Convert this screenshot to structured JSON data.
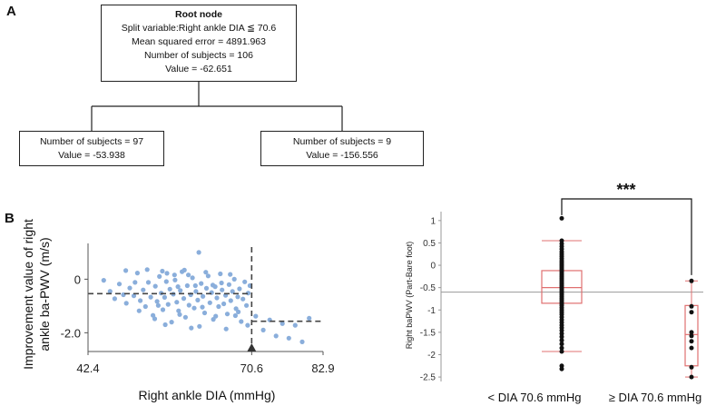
{
  "panels": {
    "a": "A",
    "b": "B"
  },
  "tree": {
    "root": {
      "title": "Root node",
      "lines": [
        "Split variable:Right ankle DIA ≦ 70.6",
        "Mean squared error = 4891.963",
        "Number of subjects = 106",
        "Value = -62.651"
      ]
    },
    "left": {
      "lines": [
        "Number of subjects = 97",
        "Value = -53.938"
      ]
    },
    "right": {
      "lines": [
        "Number of subjects = 9",
        "Value = -156.556"
      ]
    }
  },
  "chart_data": [
    {
      "type": "scatter",
      "xlabel": "Right ankle DIA (mmHg)",
      "ylabel_lines": [
        "Improvement value of right",
        "ankle ba-PWV (m/s)"
      ],
      "xlim": [
        42.4,
        82.9
      ],
      "ylim": [
        -2.7,
        1.2
      ],
      "xticks": [
        {
          "value": 42.4,
          "label": "42.4"
        },
        {
          "value": 70.6,
          "label": "70.6"
        },
        {
          "value": 82.9,
          "label": "82.9"
        }
      ],
      "yticks": [
        {
          "value": 0,
          "label": "0"
        },
        {
          "value": -2.0,
          "label": "-2.0"
        }
      ],
      "split_x": 70.6,
      "segment_means": [
        {
          "from": 42.4,
          "to": 70.6,
          "value": -0.54
        },
        {
          "from": 70.6,
          "to": 82.9,
          "value": -1.57
        }
      ],
      "points": [
        [
          45.1,
          -0.04
        ],
        [
          46.2,
          -0.45
        ],
        [
          47.0,
          -0.73
        ],
        [
          47.8,
          -0.18
        ],
        [
          48.5,
          -0.58
        ],
        [
          49.0,
          -0.9
        ],
        [
          49.6,
          -0.33
        ],
        [
          50.3,
          -0.62
        ],
        [
          50.9,
          0.23
        ],
        [
          51.4,
          -0.8
        ],
        [
          51.9,
          -0.4
        ],
        [
          52.3,
          -1.02
        ],
        [
          52.8,
          -0.12
        ],
        [
          53.2,
          -0.67
        ],
        [
          53.6,
          -1.35
        ],
        [
          54.0,
          -0.26
        ],
        [
          54.3,
          -0.83
        ],
        [
          54.7,
          0.1
        ],
        [
          55.0,
          -0.52
        ],
        [
          55.3,
          -1.14
        ],
        [
          55.6,
          -0.68
        ],
        [
          55.9,
          -0.09
        ],
        [
          56.2,
          -0.94
        ],
        [
          56.5,
          -0.37
        ],
        [
          56.8,
          -1.6
        ],
        [
          57.1,
          -0.56
        ],
        [
          57.4,
          -0.03
        ],
        [
          57.7,
          -0.86
        ],
        [
          58.0,
          -1.18
        ],
        [
          58.3,
          -0.42
        ],
        [
          58.6,
          0.28
        ],
        [
          58.9,
          -0.72
        ],
        [
          59.2,
          -1.42
        ],
        [
          59.5,
          -0.24
        ],
        [
          59.8,
          -0.97
        ],
        [
          60.1,
          -0.58
        ],
        [
          60.4,
          0.05
        ],
        [
          60.7,
          -1.08
        ],
        [
          61.0,
          -0.46
        ],
        [
          61.3,
          -0.78
        ],
        [
          61.6,
          -1.76
        ],
        [
          61.9,
          -0.16
        ],
        [
          62.2,
          -0.64
        ],
        [
          62.5,
          -1.26
        ],
        [
          62.8,
          -0.34
        ],
        [
          63.1,
          0.12
        ],
        [
          63.4,
          -0.88
        ],
        [
          63.7,
          -0.5
        ],
        [
          64.0,
          -1.5
        ],
        [
          64.3,
          -0.28
        ],
        [
          64.6,
          -0.7
        ],
        [
          64.9,
          -1.02
        ],
        [
          65.2,
          0.2
        ],
        [
          65.5,
          -0.4
        ],
        [
          65.8,
          -0.92
        ],
        [
          66.1,
          -0.6
        ],
        [
          66.4,
          -1.3
        ],
        [
          66.7,
          -0.2
        ],
        [
          67.0,
          -0.8
        ],
        [
          67.3,
          -0.46
        ],
        [
          67.6,
          0.0
        ],
        [
          67.9,
          -1.1
        ],
        [
          68.2,
          -0.66
        ],
        [
          68.5,
          -0.36
        ],
        [
          68.8,
          -1.58
        ],
        [
          69.1,
          -0.74
        ],
        [
          69.4,
          -0.1
        ],
        [
          69.7,
          -0.98
        ],
        [
          70.0,
          -0.52
        ],
        [
          70.3,
          -0.24
        ],
        [
          48.9,
          0.32
        ],
        [
          50.5,
          -0.12
        ],
        [
          52.6,
          0.36
        ],
        [
          54.5,
          -0.98
        ],
        [
          56.0,
          0.22
        ],
        [
          57.9,
          -0.28
        ],
        [
          59.7,
          0.16
        ],
        [
          60.9,
          -0.24
        ],
        [
          62.7,
          0.26
        ],
        [
          63.9,
          -0.22
        ],
        [
          65.4,
          -0.14
        ],
        [
          66.9,
          0.18
        ],
        [
          68.3,
          -1.22
        ],
        [
          69.9,
          -1.72
        ],
        [
          51.2,
          -1.18
        ],
        [
          53.9,
          -1.48
        ],
        [
          55.7,
          -1.7
        ],
        [
          58.2,
          -1.32
        ],
        [
          60.2,
          -1.82
        ],
        [
          62.1,
          -1.04
        ],
        [
          64.4,
          -1.38
        ],
        [
          66.2,
          -1.86
        ],
        [
          67.8,
          -1.36
        ],
        [
          57.3,
          0.16
        ],
        [
          61.5,
          1.0
        ],
        [
          55.2,
          0.3
        ],
        [
          59.0,
          0.34
        ],
        [
          71.3,
          -1.38
        ],
        [
          72.6,
          -1.9
        ],
        [
          73.7,
          -1.52
        ],
        [
          74.8,
          -2.12
        ],
        [
          75.9,
          -1.66
        ],
        [
          77.0,
          -2.2
        ],
        [
          78.1,
          -1.72
        ],
        [
          79.3,
          -2.34
        ],
        [
          80.5,
          -1.46
        ]
      ]
    },
    {
      "type": "box",
      "ylabel": "Right baPWV (Part-Bare foot)",
      "ylim": [
        -2.6,
        1.2
      ],
      "yticks": [
        {
          "value": 1,
          "label": "1"
        },
        {
          "value": 0.5,
          "label": "0.5"
        },
        {
          "value": 0,
          "label": "0"
        },
        {
          "value": -0.5,
          "label": "-0.5"
        },
        {
          "value": -1,
          "label": "-1"
        },
        {
          "value": -1.5,
          "label": "-1.5"
        },
        {
          "value": -2,
          "label": "-2"
        },
        {
          "value": -2.5,
          "label": "-2.5"
        }
      ],
      "reference_line": -0.6,
      "significance": "***",
      "groups": [
        {
          "name": "< DIA 70.6 mmHg",
          "whisker_low": -1.93,
          "q1": -0.85,
          "median": -0.5,
          "q3": -0.12,
          "whisker_high": 0.55,
          "points": [
            1.05,
            0.55,
            0.48,
            0.42,
            0.36,
            0.3,
            0.25,
            0.2,
            0.15,
            0.1,
            0.06,
            0.02,
            -0.02,
            -0.06,
            -0.1,
            -0.14,
            -0.18,
            -0.22,
            -0.26,
            -0.3,
            -0.34,
            -0.38,
            -0.42,
            -0.46,
            -0.5,
            -0.54,
            -0.58,
            -0.62,
            -0.66,
            -0.7,
            -0.74,
            -0.78,
            -0.82,
            -0.86,
            -0.9,
            -0.95,
            -1.0,
            -1.05,
            -1.1,
            -1.16,
            -1.22,
            -1.28,
            -1.34,
            -1.4,
            -1.46,
            -1.53,
            -1.6,
            -1.68,
            -1.76,
            -1.85,
            -1.93,
            -2.25,
            -2.32
          ]
        },
        {
          "name": "≥ DIA 70.6 mmHg",
          "whisker_low": -2.5,
          "q1": -2.25,
          "median": -1.55,
          "q3": -0.9,
          "whisker_high": -0.35,
          "points": [
            -0.35,
            -0.92,
            -1.05,
            -1.5,
            -1.58,
            -1.7,
            -1.85,
            -2.28,
            -2.5
          ]
        }
      ]
    }
  ]
}
